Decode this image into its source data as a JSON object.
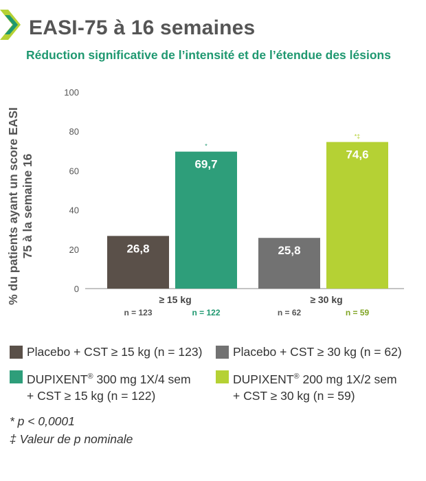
{
  "header": {
    "title": "EASI-75 à 16 semaines",
    "subtitle": "Réduction significative de l’intensité et de l’étendue des lésions"
  },
  "colors": {
    "placebo_15": "#5a5049",
    "dupixent_15": "#2e9e7a",
    "placebo_30": "#727272",
    "dupixent_30": "#b5d134",
    "accent_green": "#1f9870",
    "axis_text": "#555555"
  },
  "chart_data": {
    "type": "bar",
    "title": "",
    "ylabel_line1": "% du patients ayant un score EASI",
    "ylabel_line2": "75 à la semaine 16",
    "ylim": [
      0,
      100
    ],
    "yticks": [
      "100",
      "80",
      "60",
      "40",
      "20",
      "0"
    ],
    "grid": false,
    "groups": [
      {
        "label": "≥ 15 kg",
        "bars": [
          {
            "series": "Placebo + CST ≥ 15 kg (n = 123)",
            "value": 26.8,
            "value_label": "26,8",
            "n_label": "n = 123",
            "marker": "",
            "color_key": "placebo_15"
          },
          {
            "series": "DUPIXENT® 300 mg 1X/4 sem + CST ≥ 15 kg (n = 122)",
            "value": 69.7,
            "value_label": "69,7",
            "n_label": "n = 122",
            "marker": "*",
            "color_key": "dupixent_15"
          }
        ]
      },
      {
        "label": "≥ 30 kg",
        "bars": [
          {
            "series": "Placebo + CST ≥ 30 kg (n = 62)",
            "value": 25.8,
            "value_label": "25,8",
            "n_label": "n = 62",
            "marker": "",
            "color_key": "placebo_30"
          },
          {
            "series": "DUPIXENT® 200 mg 1X/2 sem + CST ≥ 30 kg (n = 59)",
            "value": 74.6,
            "value_label": "74,6",
            "n_label": "n = 59",
            "marker": "*‡",
            "color_key": "dupixent_30"
          }
        ]
      }
    ]
  },
  "legend": {
    "placebo_15": "Placebo + CST ≥ 15 kg (n = 123)",
    "placebo_30": "Placebo + CST ≥ 30 kg (n = 62)",
    "dupixent_15_line1_brand": "DUPIXENT",
    "dupixent_15_line1_rest": " 300 mg 1X/4 sem",
    "dupixent_15_line2": "+ CST ≥ 15 kg (n = 122)",
    "dupixent_30_line1_brand": "DUPIXENT",
    "dupixent_30_line1_rest": " 200 mg 1X/2 sem",
    "dupixent_30_line2": "+ CST ≥ 30 kg (n = 59)",
    "registered_mark": "®"
  },
  "footnotes": {
    "significance": "* p < 0,0001",
    "nominal": "‡ Valeur de p nominale"
  }
}
